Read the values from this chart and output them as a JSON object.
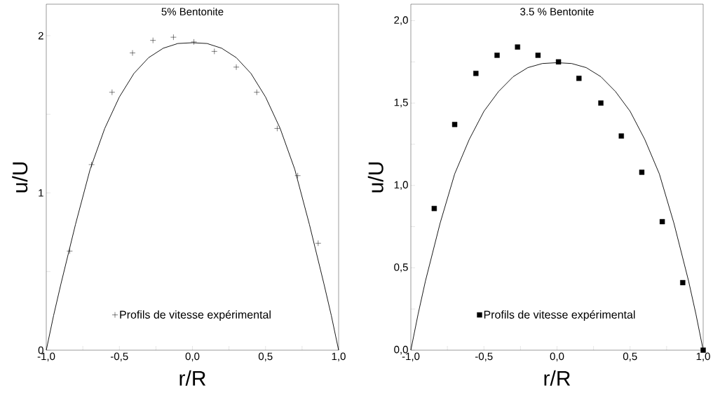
{
  "chart_data": [
    {
      "type": "scatter",
      "title": "5% Bentonite",
      "xlabel": "r/R",
      "ylabel": "u/U",
      "xlim": [
        -1,
        1
      ],
      "ylim": [
        0,
        2.2
      ],
      "xticks": [
        {
          "value": -1,
          "label": "-1,0"
        },
        {
          "value": -0.75,
          "label": null
        },
        {
          "value": -0.5,
          "label": "-0,5"
        },
        {
          "value": -0.25,
          "label": null
        },
        {
          "value": 0,
          "label": "0,0"
        },
        {
          "value": 0.25,
          "label": null
        },
        {
          "value": 0.5,
          "label": "0,5"
        },
        {
          "value": 0.75,
          "label": null
        },
        {
          "value": 1,
          "label": "1,0"
        }
      ],
      "yticks": [
        0,
        {
          "value": 0.5,
          "label": null
        },
        1,
        {
          "value": 1.5,
          "label": null
        },
        2
      ],
      "legend": "bottom",
      "series": [
        {
          "type": "line",
          "color": "#000000",
          "marker": "none",
          "x": [
            -1,
            -0.95,
            -0.9,
            -0.8,
            -0.7,
            -0.6,
            -0.5,
            -0.4,
            -0.3,
            -0.2,
            -0.1,
            0,
            0.1,
            0.2,
            0.3,
            0.4,
            0.5,
            0.6,
            0.7,
            0.8,
            0.9,
            0.95,
            1
          ],
          "values": [
            0,
            0.22,
            0.42,
            0.8,
            1.15,
            1.41,
            1.61,
            1.76,
            1.86,
            1.92,
            1.95,
            1.955,
            1.95,
            1.92,
            1.86,
            1.76,
            1.61,
            1.41,
            1.15,
            0.8,
            0.42,
            0.22,
            0
          ]
        },
        {
          "name": "Profils de vitesse expérimental",
          "color": "#000000",
          "marker": "cross",
          "x": [
            -0.84,
            -0.69,
            -0.55,
            -0.41,
            -0.27,
            -0.13,
            0.01,
            0.15,
            0.3,
            0.44,
            0.58,
            0.72,
            0.86
          ],
          "values": [
            0.63,
            1.18,
            1.64,
            1.89,
            1.97,
            1.99,
            1.96,
            1.9,
            1.8,
            1.64,
            1.41,
            1.11,
            0.68
          ]
        }
      ]
    },
    {
      "type": "scatter",
      "title": "3.5 % Bentonite",
      "xlabel": "r/R",
      "ylabel": "u/U",
      "xlim": [
        -1,
        1
      ],
      "ylim": [
        0,
        2.1
      ],
      "xticks": [
        {
          "value": -1,
          "label": "-1,0"
        },
        {
          "value": -0.75,
          "label": null
        },
        {
          "value": -0.5,
          "label": "-0,5"
        },
        {
          "value": -0.25,
          "label": null
        },
        {
          "value": 0,
          "label": "0,0"
        },
        {
          "value": 0.25,
          "label": null
        },
        {
          "value": 0.5,
          "label": "0,5"
        },
        {
          "value": 0.75,
          "label": null
        },
        {
          "value": 1,
          "label": "1,0"
        }
      ],
      "yticks": [
        {
          "value": 0,
          "label": "0,0"
        },
        {
          "value": 0.25,
          "label": null
        },
        {
          "value": 0.5,
          "label": "0,5"
        },
        {
          "value": 0.75,
          "label": null
        },
        {
          "value": 1,
          "label": "1,0"
        },
        {
          "value": 1.25,
          "label": null
        },
        {
          "value": 1.5,
          "label": "1,5"
        },
        {
          "value": 1.75,
          "label": null
        },
        {
          "value": 2,
          "label": "2,0"
        }
      ],
      "legend": "bottom",
      "series": [
        {
          "type": "line",
          "color": "#000000",
          "marker": "none",
          "x": [
            -1,
            -0.95,
            -0.9,
            -0.8,
            -0.7,
            -0.6,
            -0.5,
            -0.4,
            -0.3,
            -0.2,
            -0.1,
            0,
            0.1,
            0.2,
            0.3,
            0.4,
            0.5,
            0.6,
            0.7,
            0.8,
            0.9,
            0.95,
            1
          ],
          "values": [
            0,
            0.22,
            0.42,
            0.77,
            1.07,
            1.28,
            1.45,
            1.57,
            1.66,
            1.715,
            1.74,
            1.745,
            1.74,
            1.715,
            1.66,
            1.57,
            1.45,
            1.28,
            1.07,
            0.77,
            0.42,
            0.22,
            0
          ]
        },
        {
          "name": "Profils de vitesse expérimental",
          "color": "#000000",
          "marker": "square",
          "x": [
            -0.84,
            -0.7,
            -0.555,
            -0.41,
            -0.27,
            -0.13,
            0.01,
            0.15,
            0.3,
            0.44,
            0.58,
            0.72,
            0.86,
            1.0
          ],
          "values": [
            0.86,
            1.37,
            1.68,
            1.79,
            1.84,
            1.79,
            1.75,
            1.65,
            1.5,
            1.3,
            1.08,
            0.78,
            0.41,
            0.0
          ]
        }
      ]
    }
  ]
}
